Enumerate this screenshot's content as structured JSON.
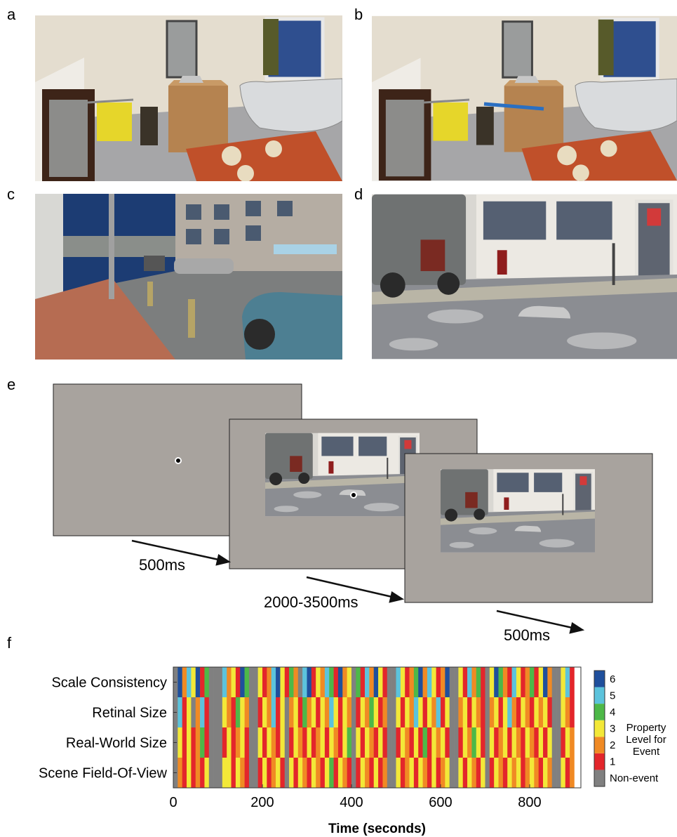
{
  "panels": {
    "labels": [
      "a",
      "b",
      "c",
      "d",
      "e",
      "f"
    ]
  },
  "timeline": {
    "durations": [
      "500ms",
      "2000-3500ms",
      "500ms"
    ]
  },
  "chart_data": {
    "type": "heatmap",
    "xlabel": "Time (seconds)",
    "categories": [
      "Scale Consistency",
      "Retinal Size",
      "Real-World Size",
      "Scene Field-Of-View"
    ],
    "bins": [
      0,
      10,
      20,
      30,
      40,
      50,
      60,
      70,
      80,
      90,
      100,
      110,
      120,
      130,
      140,
      150,
      160,
      170,
      180,
      190,
      200,
      210,
      220,
      230,
      240,
      250,
      260,
      270,
      280,
      290,
      300,
      310,
      320,
      330,
      340,
      350,
      360,
      370,
      380,
      390,
      400,
      410,
      420,
      430,
      440,
      450,
      460,
      470,
      480,
      490,
      500,
      510,
      520,
      530,
      540,
      550,
      560,
      570,
      580,
      590,
      600,
      610,
      620,
      630,
      640,
      650,
      660,
      670,
      680,
      690,
      700,
      710,
      720,
      730,
      740,
      750,
      760,
      770,
      780,
      790,
      800,
      810,
      820,
      830,
      840,
      850,
      860,
      870,
      880,
      890,
      900
    ],
    "values": [
      [
        0,
        6,
        2,
        5,
        3,
        6,
        1,
        4,
        0,
        0,
        0,
        5,
        2,
        3,
        1,
        6,
        4,
        0,
        0,
        3,
        1,
        2,
        5,
        6,
        3,
        1,
        4,
        2,
        0,
        5,
        6,
        1,
        3,
        2,
        5,
        4,
        1,
        6,
        2,
        3,
        0,
        4,
        1,
        5,
        2,
        6,
        3,
        1,
        0,
        0,
        5,
        3,
        1,
        2,
        4,
        6,
        2,
        5,
        3,
        1,
        2,
        6,
        0,
        0,
        3,
        1,
        5,
        2,
        4,
        1,
        0,
        3,
        6,
        4,
        2,
        1,
        5,
        3,
        1,
        2,
        4,
        1,
        3,
        6,
        2,
        0,
        0,
        3,
        5,
        1
      ],
      [
        0,
        5,
        1,
        3,
        0,
        2,
        5,
        1,
        0,
        0,
        0,
        3,
        2,
        1,
        4,
        3,
        2,
        0,
        0,
        1,
        3,
        2,
        5,
        1,
        3,
        0,
        2,
        3,
        1,
        4,
        2,
        3,
        1,
        3,
        2,
        5,
        3,
        1,
        3,
        2,
        0,
        1,
        3,
        2,
        4,
        3,
        1,
        2,
        0,
        0,
        3,
        1,
        3,
        2,
        5,
        3,
        1,
        3,
        2,
        5,
        1,
        3,
        0,
        0,
        2,
        3,
        1,
        3,
        2,
        1,
        0,
        2,
        3,
        1,
        3,
        5,
        2,
        1,
        3,
        2,
        1,
        3,
        2,
        3,
        1,
        0,
        0,
        3,
        2,
        1
      ],
      [
        0,
        3,
        1,
        3,
        1,
        2,
        4,
        1,
        0,
        0,
        0,
        1,
        3,
        1,
        2,
        3,
        1,
        0,
        0,
        3,
        1,
        3,
        2,
        1,
        3,
        0,
        1,
        3,
        2,
        1,
        3,
        1,
        2,
        3,
        1,
        3,
        2,
        1,
        3,
        4,
        0,
        3,
        1,
        3,
        2,
        1,
        3,
        1,
        0,
        0,
        1,
        3,
        2,
        1,
        3,
        1,
        4,
        1,
        3,
        2,
        3,
        1,
        0,
        0,
        1,
        3,
        2,
        4,
        3,
        1,
        0,
        3,
        1,
        2,
        3,
        1,
        3,
        2,
        1,
        3,
        2,
        1,
        3,
        1,
        3,
        0,
        0,
        1,
        3,
        2
      ],
      [
        0,
        2,
        1,
        3,
        1,
        2,
        1,
        3,
        0,
        0,
        0,
        3,
        3,
        1,
        3,
        2,
        1,
        0,
        0,
        1,
        3,
        1,
        2,
        3,
        1,
        0,
        3,
        1,
        3,
        2,
        1,
        3,
        2,
        1,
        3,
        4,
        1,
        3,
        2,
        1,
        0,
        1,
        3,
        2,
        1,
        3,
        1,
        2,
        0,
        0,
        3,
        1,
        2,
        3,
        1,
        3,
        2,
        1,
        3,
        1,
        2,
        3,
        0,
        0,
        3,
        1,
        3,
        2,
        1,
        3,
        0,
        1,
        3,
        2,
        1,
        3,
        2,
        3,
        1,
        2,
        3,
        2,
        1,
        3,
        2,
        0,
        0,
        3,
        1,
        2
      ]
    ],
    "xlim": [
      0,
      915
    ],
    "xticks": [
      0,
      200,
      400,
      600,
      800
    ],
    "colors": [
      "#808080",
      "#e3262b",
      "#f08a24",
      "#f3e838",
      "#4db848",
      "#5cc3dc",
      "#1f4f9c"
    ],
    "colorbar": {
      "title": "Property Level for Event",
      "ticks": [
        {
          "value": 0,
          "label": "Non-event"
        },
        1,
        2,
        3,
        4,
        5,
        6
      ]
    }
  }
}
